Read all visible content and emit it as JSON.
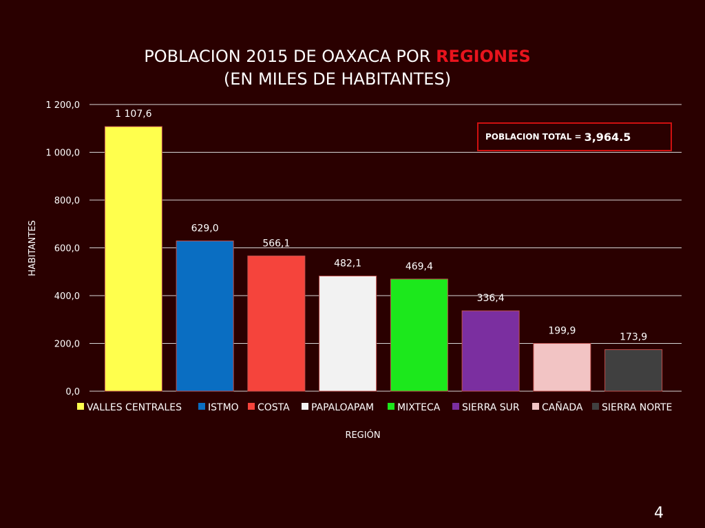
{
  "chart_data": {
    "type": "bar",
    "title_prefix": "POBLACION 2015 DE OAXACA POR ",
    "title_highlight": "REGIONES",
    "subtitle": "(EN MILES DE HABITANTES)",
    "ylabel": "HABITANTES",
    "xlabel": "REGIÓN",
    "ylim": [
      0,
      1200
    ],
    "yticks": [
      0,
      200,
      400,
      600,
      800,
      1000,
      1200
    ],
    "ytick_labels": [
      "0,0",
      "200,0",
      "400,0",
      "600,0",
      "800,0",
      "1 000,0",
      "1 200,0"
    ],
    "grid": true,
    "legend_position": "bottom",
    "categories": [
      "VALLES CENTRALES",
      "ISTMO",
      "COSTA",
      "PAPALOAPAM",
      "MIXTECA",
      "SIERRA SUR",
      "CAÑADA",
      "SIERRA NORTE"
    ],
    "values": [
      1107.6,
      629.0,
      566.1,
      482.1,
      469.4,
      336.4,
      199.9,
      173.9
    ],
    "value_labels": [
      "1 107,6",
      "629,0",
      "566,1",
      "482,1",
      "469,4",
      "336,4",
      "199,9",
      "173,9"
    ],
    "colors": [
      "#ffff4d",
      "#0a6ec2",
      "#f5443c",
      "#f2f2f2",
      "#1ce81c",
      "#7b2fa0",
      "#f2c4c4",
      "#404040"
    ]
  },
  "annotation": {
    "label": "POBLACION TOTAL =",
    "value": "3,964.5"
  },
  "page_number": "4"
}
